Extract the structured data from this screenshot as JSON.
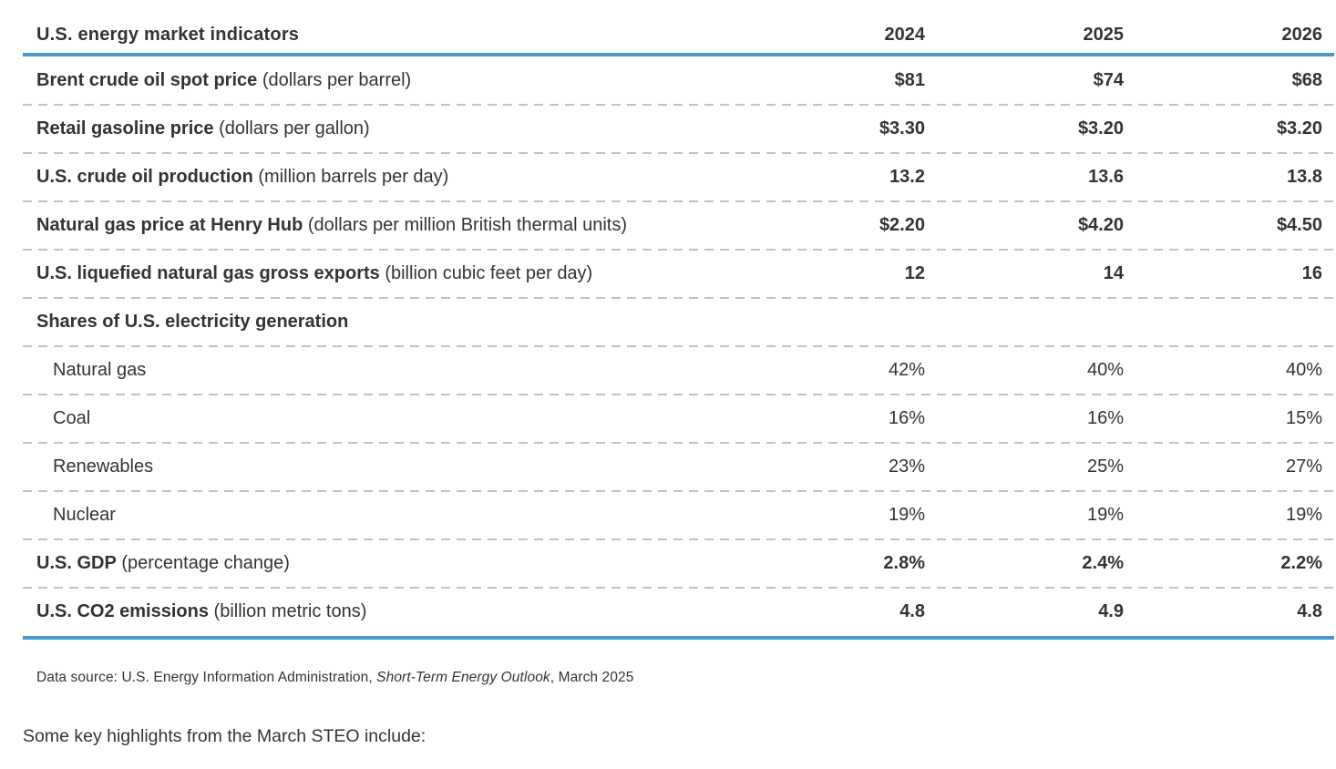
{
  "colors": {
    "accent_blue": "#4a97cb",
    "dash_gray": "#c2c2c2",
    "text": "#333333"
  },
  "table": {
    "title": "U.S. energy market indicators",
    "years": [
      "2024",
      "2025",
      "2026"
    ],
    "rows": [
      {
        "label": "Brent crude oil spot price",
        "unit": "(dollars per barrel)",
        "values": [
          "$81",
          "$74",
          "$68"
        ]
      },
      {
        "label": "Retail gasoline price",
        "unit": "(dollars per gallon)",
        "values": [
          "$3.30",
          "$3.20",
          "$3.20"
        ]
      },
      {
        "label": "U.S. crude oil production",
        "unit": "(million barrels per day)",
        "values": [
          "13.2",
          "13.6",
          "13.8"
        ]
      },
      {
        "label": "Natural gas price at Henry Hub",
        "unit": "(dollars per million British thermal units)",
        "values": [
          "$2.20",
          "$4.20",
          "$4.50"
        ]
      },
      {
        "label": "U.S. liquefied natural gas gross exports",
        "unit": "(billion cubic feet per day)",
        "values": [
          "12",
          "14",
          "16"
        ]
      },
      {
        "label": "Shares of U.S. electricity generation"
      },
      {
        "label": "Natural gas",
        "values": [
          "42%",
          "40%",
          "40%"
        ]
      },
      {
        "label": "Coal",
        "values": [
          "16%",
          "16%",
          "15%"
        ]
      },
      {
        "label": "Renewables",
        "values": [
          "23%",
          "25%",
          "27%"
        ]
      },
      {
        "label": "Nuclear",
        "values": [
          "19%",
          "19%",
          "19%"
        ]
      },
      {
        "label": "U.S. GDP",
        "unit": "(percentage change)",
        "values": [
          "2.8%",
          "2.4%",
          "2.2%"
        ]
      },
      {
        "label": "U.S. CO2 emissions",
        "unit": "(billion metric tons)",
        "values": [
          "4.8",
          "4.9",
          "4.8"
        ]
      }
    ],
    "source_prefix": "Data source: U.S. Energy Information Administration, ",
    "source_italic": "Short-Term Energy Outlook",
    "source_suffix": ", March 2025"
  },
  "footer": {
    "highlights_intro": "Some key highlights from the March STEO include:"
  },
  "chart_data": {
    "type": "table",
    "title": "U.S. energy market indicators",
    "columns": [
      "2024",
      "2025",
      "2026"
    ],
    "series": [
      {
        "name": "Brent crude oil spot price (dollars per barrel)",
        "values": [
          81,
          74,
          68
        ]
      },
      {
        "name": "Retail gasoline price (dollars per gallon)",
        "values": [
          3.3,
          3.2,
          3.2
        ]
      },
      {
        "name": "U.S. crude oil production (million barrels per day)",
        "values": [
          13.2,
          13.6,
          13.8
        ]
      },
      {
        "name": "Natural gas price at Henry Hub (dollars per million British thermal units)",
        "values": [
          2.2,
          4.2,
          4.5
        ]
      },
      {
        "name": "U.S. liquefied natural gas gross exports (billion cubic feet per day)",
        "values": [
          12,
          14,
          16
        ]
      },
      {
        "name": "Shares of U.S. electricity generation - Natural gas (%)",
        "values": [
          42,
          40,
          40
        ]
      },
      {
        "name": "Shares of U.S. electricity generation - Coal (%)",
        "values": [
          16,
          16,
          15
        ]
      },
      {
        "name": "Shares of U.S. electricity generation - Renewables (%)",
        "values": [
          23,
          25,
          27
        ]
      },
      {
        "name": "Shares of U.S. electricity generation - Nuclear (%)",
        "values": [
          19,
          19,
          19
        ]
      },
      {
        "name": "U.S. GDP (percentage change)",
        "values": [
          2.8,
          2.4,
          2.2
        ]
      },
      {
        "name": "U.S. CO2 emissions (billion metric tons)",
        "values": [
          4.8,
          4.9,
          4.8
        ]
      }
    ]
  }
}
